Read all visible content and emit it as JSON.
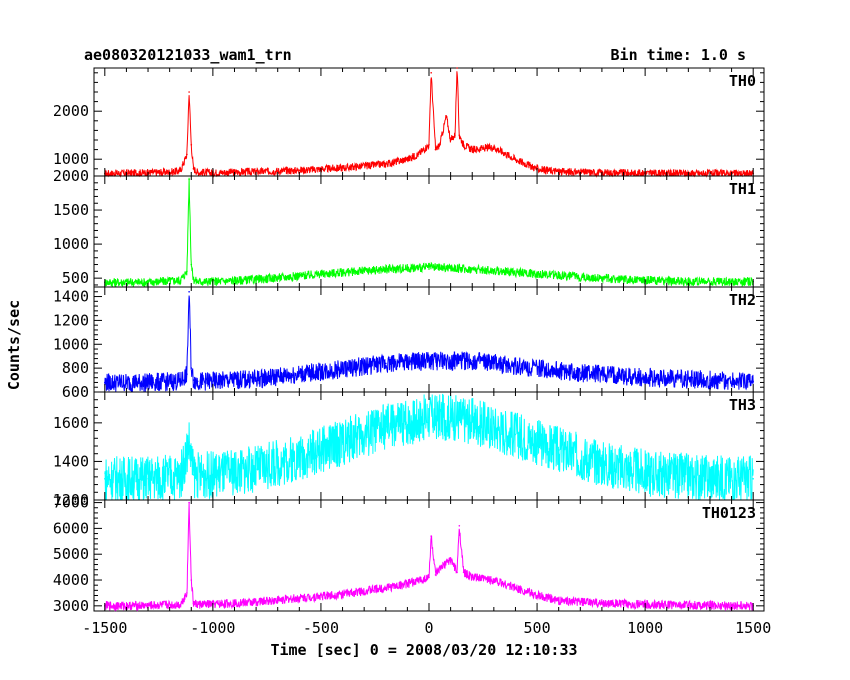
{
  "chart_data": {
    "type": "line",
    "title": "ae080320121033_wam1_trn",
    "subtitle": "Bin time: 1.0 s",
    "xlabel": "Time [sec] 0 = 2008/03/20 12:10:33",
    "ylabel": "Counts/sec",
    "xlim": [
      -1550,
      1550
    ],
    "x_ticks": [
      -1500,
      -1000,
      -500,
      0,
      500,
      1000,
      1500
    ],
    "grid": false,
    "panels": [
      {
        "name": "TH0",
        "color": "#ff0000",
        "ylim": [
          650,
          2900
        ],
        "y_ticks": [
          1000,
          2000
        ],
        "x": [
          -1500,
          -1400,
          -1300,
          -1200,
          -1150,
          -1120,
          -1110,
          -1100,
          -1090,
          -1070,
          -1000,
          -800,
          -600,
          -400,
          -200,
          -100,
          -50,
          0,
          10,
          30,
          50,
          80,
          100,
          120,
          130,
          140,
          160,
          200,
          300,
          400,
          500,
          600,
          800,
          1000,
          1200,
          1400,
          1500
        ],
        "y": [
          700,
          710,
          720,
          730,
          760,
          1100,
          2400,
          1300,
          800,
          730,
          720,
          740,
          770,
          820,
          900,
          1000,
          1100,
          1300,
          2800,
          1200,
          1300,
          1900,
          1400,
          1500,
          2900,
          1500,
          1300,
          1200,
          1250,
          1000,
          800,
          740,
          720,
          710,
          705,
          700,
          700
        ]
      },
      {
        "name": "TH1",
        "color": "#00ff00",
        "ylim": [
          370,
          2000
        ],
        "y_ticks": [
          500,
          1000,
          1500,
          2000
        ],
        "x": [
          -1500,
          -1300,
          -1150,
          -1120,
          -1110,
          -1100,
          -1090,
          -1070,
          -1000,
          -800,
          -500,
          -200,
          0,
          100,
          300,
          600,
          900,
          1200,
          1500
        ],
        "y": [
          440,
          440,
          470,
          600,
          1950,
          700,
          480,
          450,
          450,
          480,
          560,
          630,
          660,
          650,
          610,
          540,
          480,
          450,
          450
        ]
      },
      {
        "name": "TH2",
        "color": "#0000ff",
        "ylim": [
          600,
          1480
        ],
        "y_ticks": [
          600,
          800,
          1000,
          1200,
          1400
        ],
        "x": [
          -1500,
          -1300,
          -1150,
          -1120,
          -1110,
          -1100,
          -1090,
          -1070,
          -1000,
          -800,
          -500,
          -200,
          0,
          200,
          400,
          700,
          1000,
          1300,
          1500
        ],
        "y": [
          680,
          680,
          690,
          750,
          1440,
          800,
          700,
          690,
          690,
          710,
          770,
          840,
          860,
          860,
          820,
          760,
          720,
          700,
          690
        ]
      },
      {
        "name": "TH3",
        "color": "#00ffff",
        "ylim": [
          1200,
          1760
        ],
        "y_ticks": [
          1200,
          1400,
          1600
        ],
        "x": [
          -1500,
          -1300,
          -1150,
          -1110,
          -1090,
          -1000,
          -800,
          -600,
          -400,
          -200,
          0,
          100,
          200,
          400,
          600,
          800,
          1000,
          1200,
          1500
        ],
        "y": [
          1310,
          1310,
          1320,
          1500,
          1330,
          1330,
          1360,
          1420,
          1500,
          1580,
          1630,
          1630,
          1610,
          1540,
          1460,
          1390,
          1340,
          1320,
          1310
        ]
      },
      {
        "name": "TH0123",
        "color": "#ff00ff",
        "ylim": [
          2800,
          7100
        ],
        "y_ticks": [
          3000,
          4000,
          5000,
          6000,
          7000
        ],
        "x": [
          -1500,
          -1300,
          -1150,
          -1120,
          -1110,
          -1100,
          -1090,
          -1070,
          -1000,
          -800,
          -600,
          -400,
          -200,
          -100,
          0,
          10,
          30,
          60,
          100,
          130,
          140,
          160,
          200,
          300,
          400,
          500,
          600,
          800,
          1000,
          1200,
          1500
        ],
        "y": [
          3000,
          3010,
          3050,
          3500,
          7000,
          4000,
          3100,
          3050,
          3060,
          3150,
          3300,
          3450,
          3700,
          3850,
          4100,
          5700,
          4200,
          4500,
          4800,
          4300,
          6100,
          4300,
          4100,
          4000,
          3700,
          3400,
          3200,
          3100,
          3050,
          3030,
          3000
        ]
      }
    ]
  }
}
